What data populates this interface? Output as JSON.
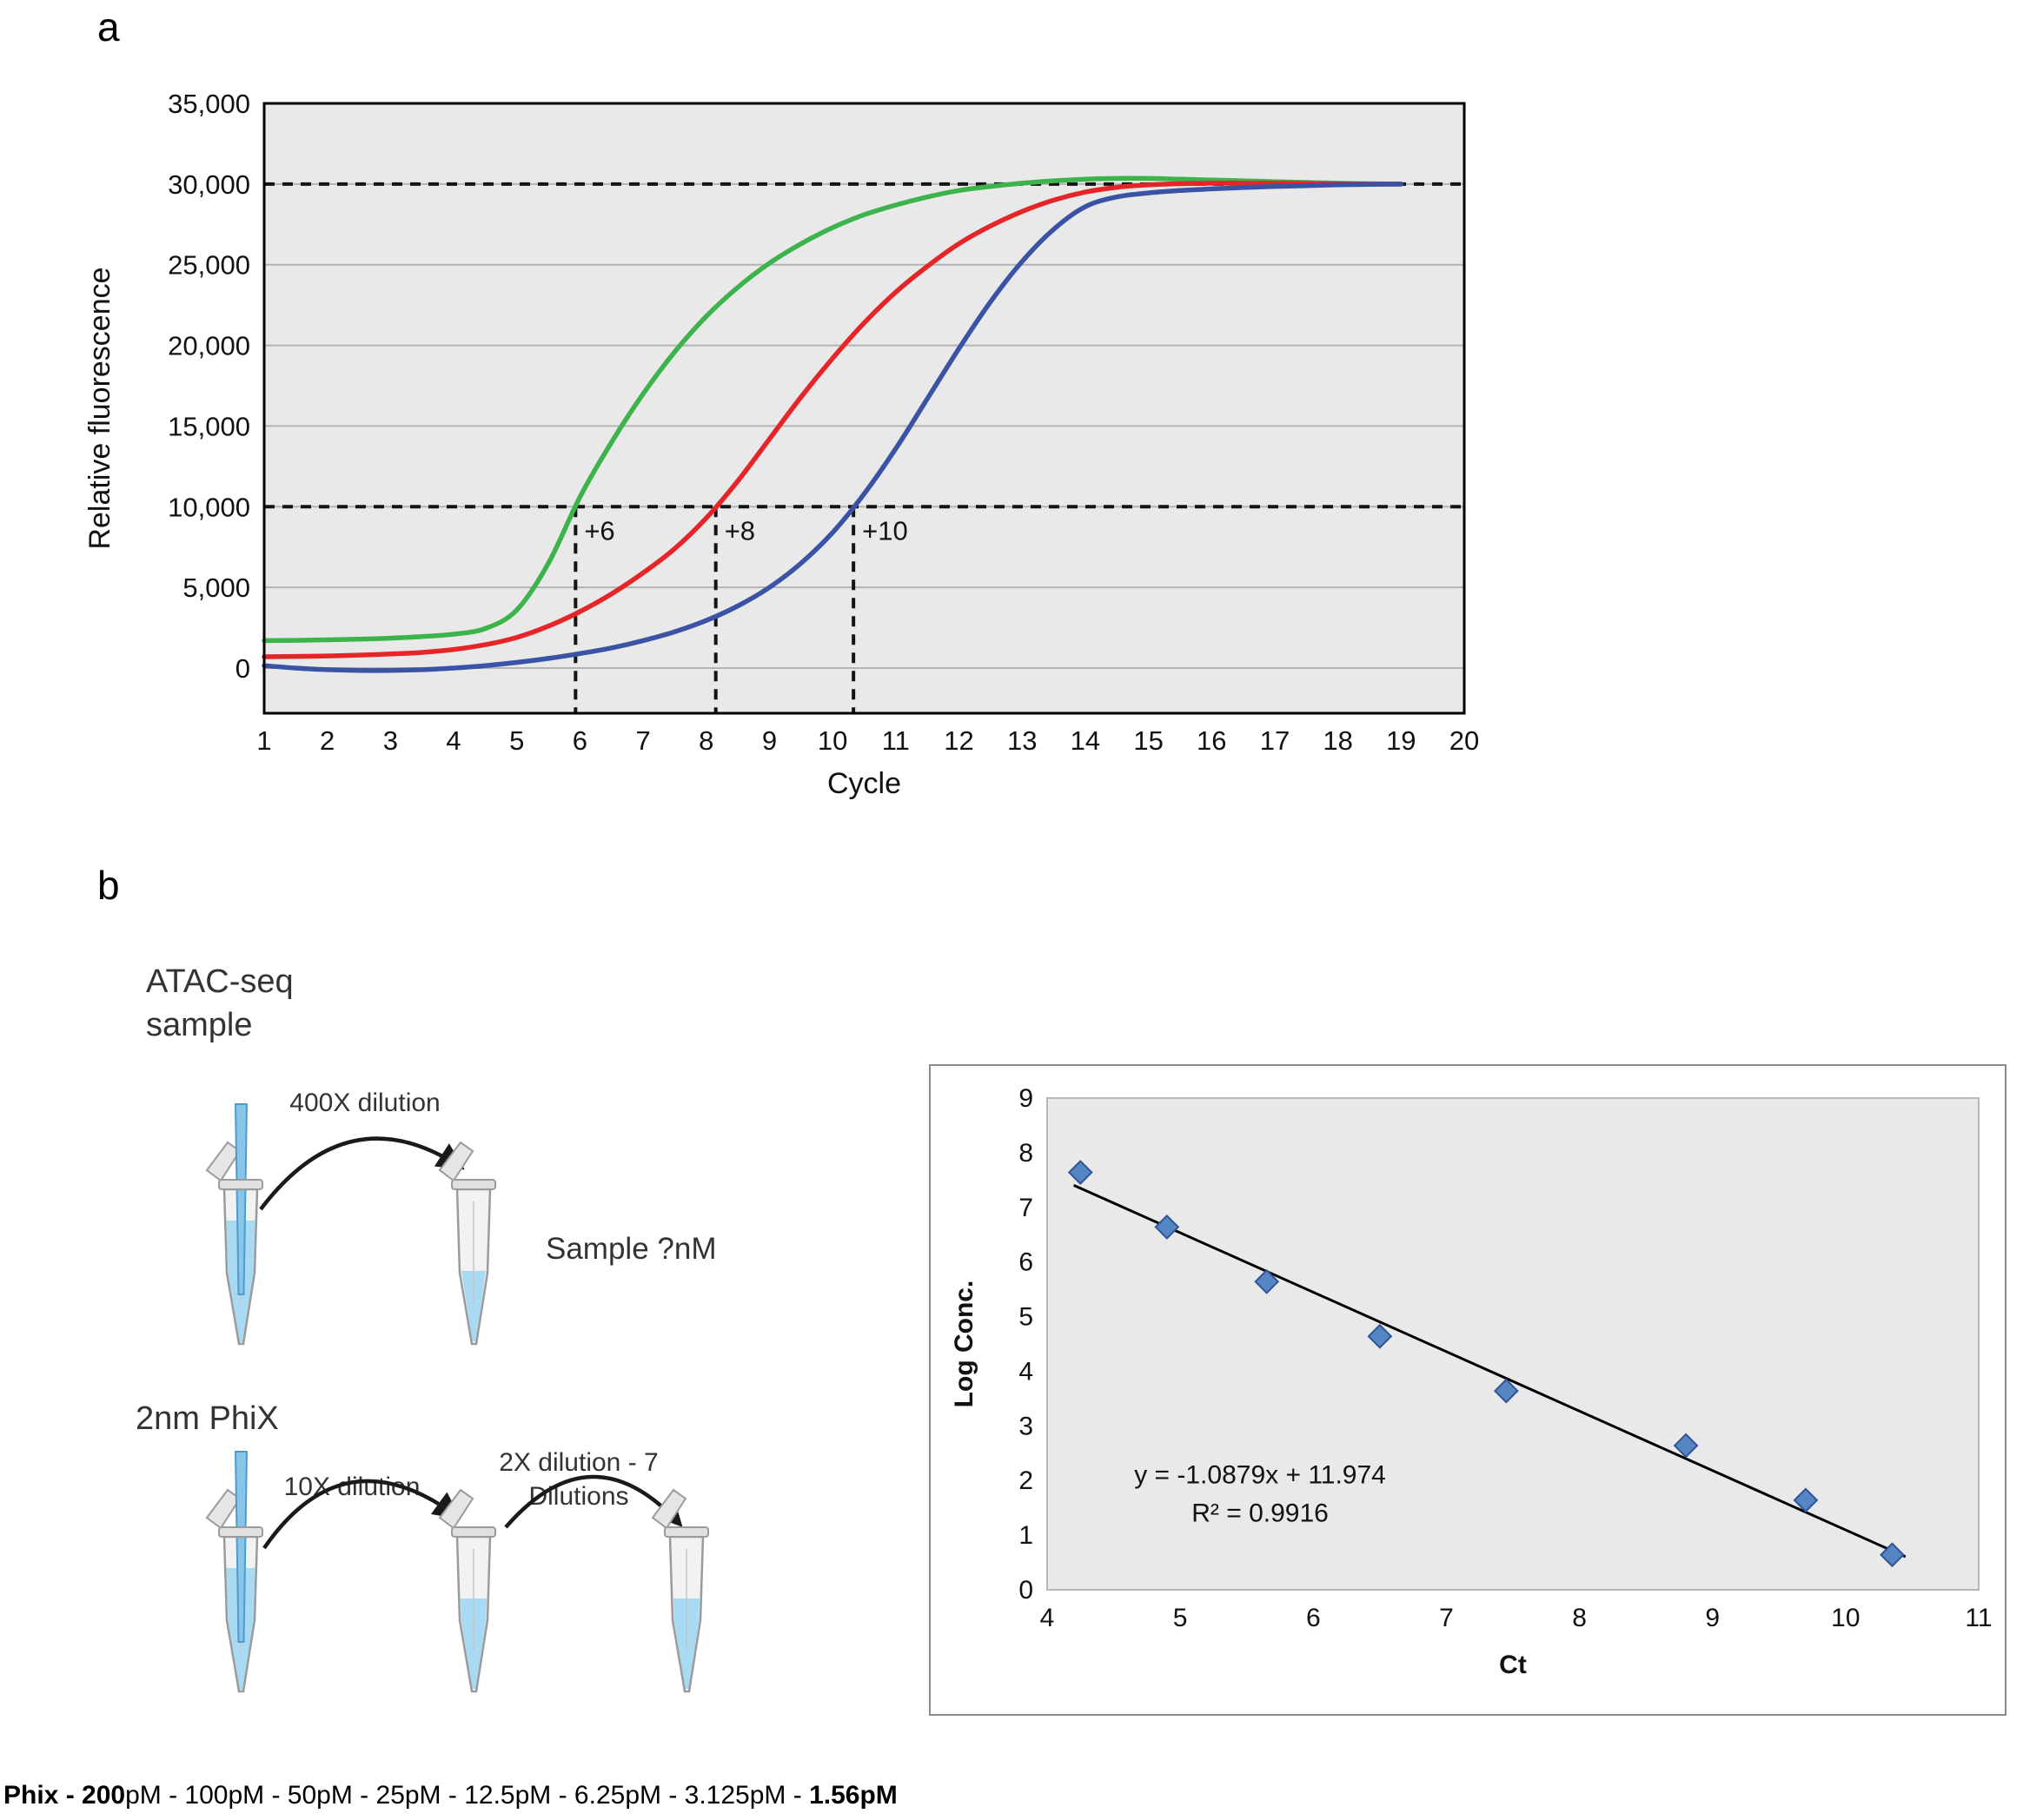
{
  "panels": {
    "a_label": "a",
    "b_label": "b"
  },
  "chart_data": [
    {
      "id": "qpcr-amplification",
      "type": "line",
      "xlabel": "Cycle",
      "ylabel": "Relative fluorescence",
      "xlim": [
        1,
        20
      ],
      "ylim": [
        -2800,
        35000
      ],
      "x_ticks": [
        1,
        2,
        3,
        4,
        5,
        6,
        7,
        8,
        9,
        10,
        11,
        12,
        13,
        14,
        15,
        16,
        17,
        18,
        19,
        20
      ],
      "y_ticks": [
        {
          "label": "0",
          "value": 0
        },
        {
          "label": "5,000",
          "value": 5000
        },
        {
          "label": "10,000",
          "value": 10000
        },
        {
          "label": "15,000",
          "value": 15000
        },
        {
          "label": "20,000",
          "value": 20000
        },
        {
          "label": "25,000",
          "value": 25000
        },
        {
          "label": "30,000",
          "value": 30000
        },
        {
          "label": "35,000",
          "value": 35000
        }
      ],
      "threshold_lines": [
        30000,
        10000
      ],
      "ct_threshold": 10000,
      "ct_markers": [
        {
          "x": 5.93,
          "label": "+6"
        },
        {
          "x": 8.15,
          "label": "+8"
        },
        {
          "x": 10.33,
          "label": "+10"
        }
      ],
      "x_values": [
        1,
        1.5,
        2,
        2.5,
        3,
        3.5,
        4,
        4.5,
        5,
        5.5,
        6,
        6.5,
        7,
        7.5,
        8,
        8.5,
        9,
        9.5,
        10,
        10.5,
        11,
        11.5,
        12,
        12.5,
        13,
        13.5,
        14,
        14.5,
        15,
        15.5,
        16,
        16.5,
        17,
        17.5,
        18,
        18.5,
        19
      ],
      "series": [
        {
          "name": "green-curve",
          "color": "#3cb44b",
          "values": [
            1700,
            1720,
            1750,
            1790,
            1850,
            1950,
            2100,
            2450,
            3600,
            6500,
            10600,
            14000,
            17000,
            19600,
            21800,
            23600,
            25100,
            26300,
            27300,
            28100,
            28700,
            29200,
            29600,
            29850,
            30050,
            30200,
            30300,
            30350,
            30350,
            30300,
            30250,
            30200,
            30150,
            30100,
            30050,
            30020,
            30000
          ]
        },
        {
          "name": "red-curve",
          "color": "#e52528",
          "values": [
            700,
            720,
            750,
            800,
            870,
            970,
            1150,
            1450,
            1900,
            2600,
            3500,
            4600,
            5900,
            7400,
            9300,
            11600,
            14200,
            16800,
            19200,
            21400,
            23300,
            24900,
            26300,
            27400,
            28300,
            29000,
            29500,
            29800,
            29950,
            30020,
            30050,
            30050,
            30050,
            30030,
            30010,
            30000,
            30000
          ]
        },
        {
          "name": "blue-curve",
          "color": "#3a53a4",
          "values": [
            150,
            0,
            -100,
            -150,
            -150,
            -100,
            0,
            150,
            350,
            600,
            900,
            1250,
            1700,
            2250,
            2950,
            3850,
            5000,
            6500,
            8400,
            10800,
            13600,
            16700,
            19800,
            22700,
            25200,
            27200,
            28600,
            29200,
            29450,
            29600,
            29700,
            29780,
            29850,
            29900,
            29950,
            29980,
            30000
          ]
        }
      ]
    },
    {
      "id": "phix-standard-curve",
      "type": "scatter",
      "xlabel": "Ct",
      "ylabel": "Log Conc.",
      "xlim": [
        4,
        11
      ],
      "ylim": [
        0,
        9
      ],
      "x_ticks": [
        4,
        5,
        6,
        7,
        8,
        9,
        10,
        11
      ],
      "y_ticks": [
        0,
        1,
        2,
        3,
        4,
        5,
        6,
        7,
        8,
        9
      ],
      "points": [
        [
          4.25,
          7.64
        ],
        [
          4.9,
          6.64
        ],
        [
          5.65,
          5.64
        ],
        [
          6.5,
          4.64
        ],
        [
          7.45,
          3.64
        ],
        [
          8.8,
          2.64
        ],
        [
          9.7,
          1.64
        ],
        [
          10.35,
          0.64
        ]
      ],
      "trendline": {
        "slope": -1.0879,
        "intercept": 11.974,
        "x_start": 4.2,
        "x_end": 10.45
      },
      "equation_label": "y = -1.0879x + 11.974",
      "r_squared_label": "R² = 0.9916",
      "equation_pos": [
        5.6,
        1.95
      ],
      "r2_pos": [
        5.6,
        1.25
      ],
      "marker_color": "#5585c2",
      "marker_edge": "#2f5597"
    }
  ],
  "workflow": {
    "atac_line1": "ATAC-seq",
    "atac_line2": "sample",
    "dilution_400x": "400X dilution",
    "sample_nm": "Sample ?nM",
    "phix": "2nm PhiX",
    "dilution_10x": "10X dilution",
    "dilution_2x_line1": "2X dilution - 7",
    "dilution_2x_line2": "Dilutions"
  },
  "footer": {
    "segments": [
      {
        "text": "Phix - 200",
        "bold": true
      },
      {
        "text": "pM - 100pM - 50pM - 25pM - 12.5pM - 6.25pM - 3.125pM - ",
        "bold": false
      },
      {
        "text": "1.56pM",
        "bold": true
      }
    ]
  }
}
